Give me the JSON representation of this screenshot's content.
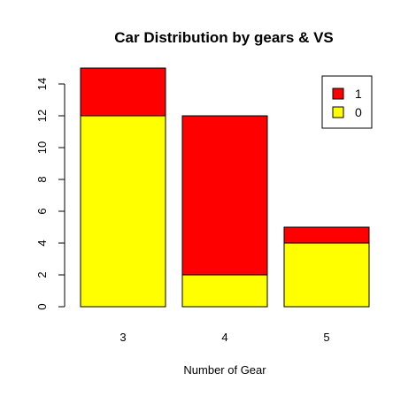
{
  "chart_data": {
    "type": "bar",
    "stacked": true,
    "title": "Car Distribution by gears & VS",
    "xlabel": "Number of Gear",
    "ylabel": "",
    "categories": [
      "3",
      "4",
      "5"
    ],
    "series": [
      {
        "name": "0",
        "values": [
          12,
          2,
          4
        ],
        "color": "#ffff00"
      },
      {
        "name": "1",
        "values": [
          3,
          10,
          1
        ],
        "color": "#ff0000"
      }
    ],
    "ylim": [
      0,
      15
    ],
    "yticks": [
      "0",
      "2",
      "4",
      "6",
      "8",
      "10",
      "12",
      "14"
    ],
    "legend": {
      "placement": "top-right",
      "entries": [
        {
          "label": "1",
          "color": "#ff0000"
        },
        {
          "label": "0",
          "color": "#ffff00"
        }
      ]
    },
    "grid": false
  }
}
